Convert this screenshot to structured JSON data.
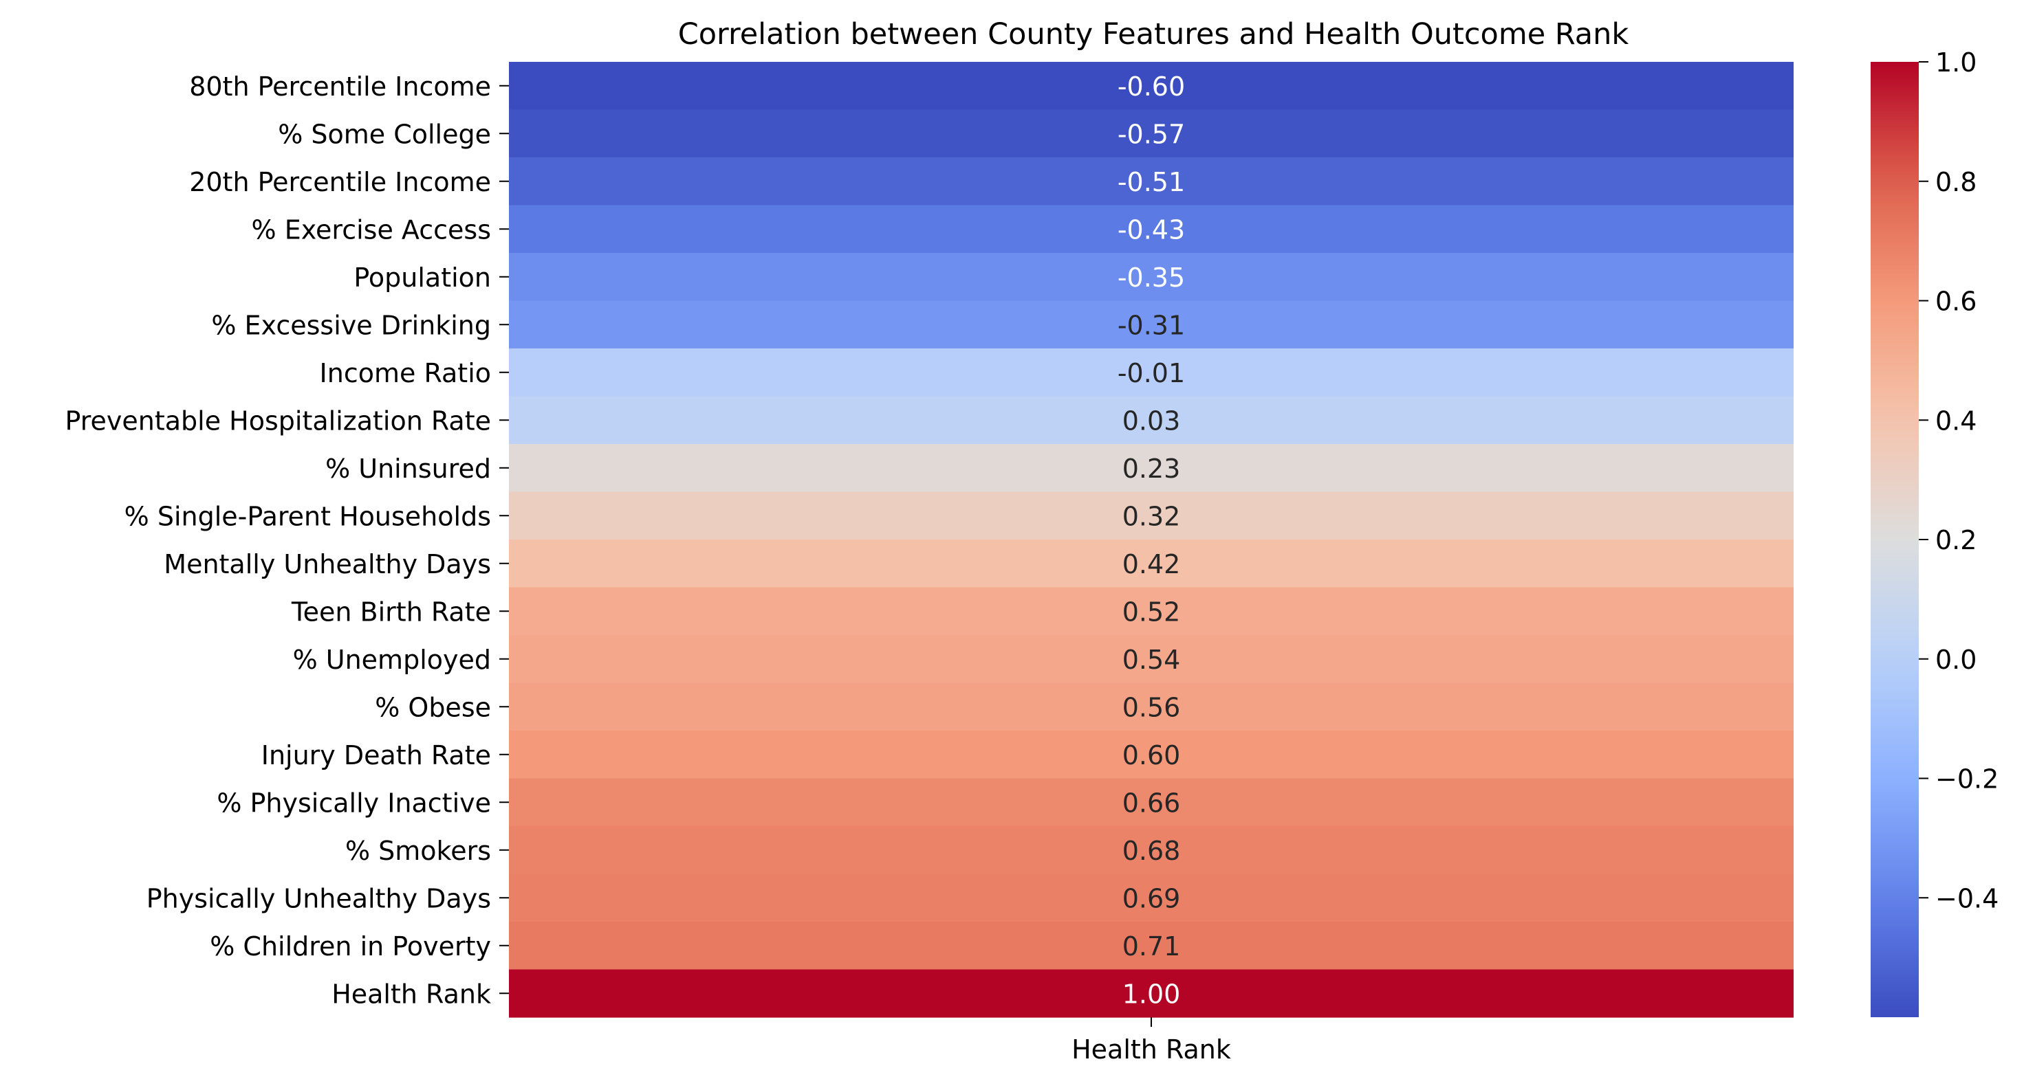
{
  "chart_data": {
    "type": "heatmap",
    "title": "Correlation between County Features and Health Outcome Rank",
    "xlabel": "",
    "ylabel": "",
    "columns": [
      "Health Rank"
    ],
    "rows": [
      {
        "label": "80th Percentile Income",
        "value": -0.6,
        "text": "-0.60"
      },
      {
        "label": "% Some College",
        "value": -0.57,
        "text": "-0.57"
      },
      {
        "label": "20th Percentile Income",
        "value": -0.51,
        "text": "-0.51"
      },
      {
        "label": "% Exercise Access",
        "value": -0.43,
        "text": "-0.43"
      },
      {
        "label": "Population",
        "value": -0.35,
        "text": "-0.35"
      },
      {
        "label": "% Excessive Drinking",
        "value": -0.31,
        "text": "-0.31"
      },
      {
        "label": "Income Ratio",
        "value": -0.01,
        "text": "-0.01"
      },
      {
        "label": "Preventable Hospitalization Rate",
        "value": 0.03,
        "text": "0.03"
      },
      {
        "label": "% Uninsured",
        "value": 0.23,
        "text": "0.23"
      },
      {
        "label": "% Single-Parent Households",
        "value": 0.32,
        "text": "0.32"
      },
      {
        "label": "Mentally Unhealthy Days",
        "value": 0.42,
        "text": "0.42"
      },
      {
        "label": "Teen Birth Rate",
        "value": 0.52,
        "text": "0.52"
      },
      {
        "label": "% Unemployed",
        "value": 0.54,
        "text": "0.54"
      },
      {
        "label": "% Obese",
        "value": 0.56,
        "text": "0.56"
      },
      {
        "label": "Injury Death Rate",
        "value": 0.6,
        "text": "0.60"
      },
      {
        "label": "% Physically Inactive",
        "value": 0.66,
        "text": "0.66"
      },
      {
        "label": "% Smokers",
        "value": 0.68,
        "text": "0.68"
      },
      {
        "label": "Physically Unhealthy Days",
        "value": 0.69,
        "text": "0.69"
      },
      {
        "label": "% Children in Poverty",
        "value": 0.71,
        "text": "0.71"
      },
      {
        "label": "Health Rank",
        "value": 1.0,
        "text": "1.00"
      }
    ],
    "colormap": "coolwarm",
    "vmin": -0.6,
    "vmax": 1.0,
    "colorbar": {
      "ticks": [
        1.0,
        0.8,
        0.6,
        0.4,
        0.2,
        0.0,
        -0.2,
        -0.4
      ],
      "tick_labels": [
        "1.0",
        "0.8",
        "0.6",
        "0.4",
        "0.2",
        "0.0",
        "−0.2",
        "−0.4"
      ]
    },
    "colors": {
      "text_light": "#ffffff",
      "text_dark": "#262626",
      "axis": "#000000"
    }
  }
}
